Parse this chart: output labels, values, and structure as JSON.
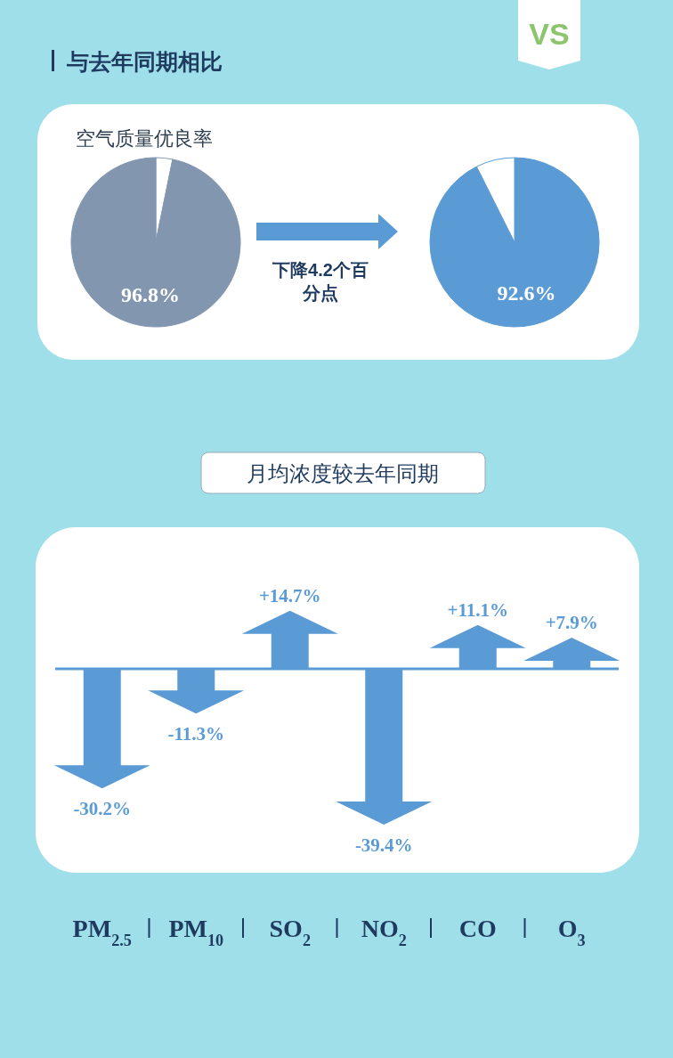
{
  "chart_data": [
    {
      "type": "pie",
      "title": "与去年同期相比",
      "subtitle": "空气质量优良率",
      "categories": [
        null,
        null
      ],
      "values": [
        3.2,
        96.8
      ],
      "colors": [
        "#ffffff",
        "#8396b0"
      ],
      "value_labels": [
        null,
        "96.8%"
      ],
      "annotations": [
        "VS",
        "下降4.2个百分点"
      ]
    },
    {
      "type": "pie",
      "categories": [
        null,
        null
      ],
      "values": [
        92.6,
        7.4
      ],
      "colors": [
        "#5b9bd5",
        "#ffffff"
      ],
      "value_labels": [
        "92.6%",
        null
      ]
    },
    {
      "type": "bar",
      "title": "月均浓度较去年同期",
      "categories": [
        "PM$_{2.5}$",
        "PM$_{10}$",
        "SO$_{2}$",
        "NO$_{2}$",
        "CO",
        "O$_{3}$"
      ],
      "values": [
        -30.2,
        -11.3,
        14.7,
        -39.4,
        11.1,
        7.9
      ],
      "color": "#5b9bd5",
      "ref_lines": [
        {
          "axis": "y",
          "value": 0,
          "color": "#5b9bd5"
        }
      ],
      "value_labels": [
        "-30.2%",
        "-11.3%",
        "+14.7%",
        "-39.4%",
        "+11.1%",
        "+7.9%"
      ]
    }
  ]
}
